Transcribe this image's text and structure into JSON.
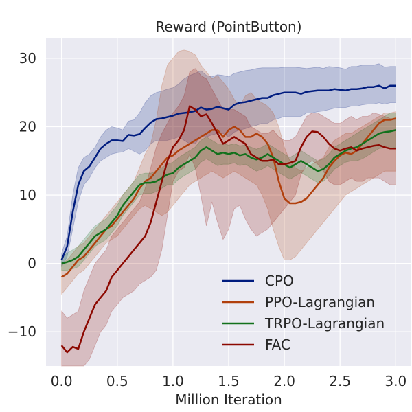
{
  "chart_data": {
    "type": "line",
    "title": "Reward (PointButton)",
    "xlabel": "Million Iteration",
    "ylabel": "",
    "xlim": [
      -0.14,
      3.14
    ],
    "ylim": [
      -15,
      33
    ],
    "xticks": [
      0.0,
      0.5,
      1.0,
      1.5,
      2.0,
      2.5,
      3.0
    ],
    "xtick_labels": [
      "0.0",
      "0.5",
      "1.0",
      "1.5",
      "2.0",
      "2.5",
      "3.0"
    ],
    "yticks": [
      -10,
      0,
      10,
      20,
      30
    ],
    "ytick_labels": [
      "−10",
      "0",
      "10",
      "20",
      "30"
    ],
    "grid": true,
    "background": "#eaeaf2",
    "legend_position": "lower-right",
    "series": [
      {
        "name": "CPO",
        "color": "#001c7f",
        "x": [
          0.0,
          0.05,
          0.1,
          0.15,
          0.2,
          0.25,
          0.3,
          0.35,
          0.4,
          0.45,
          0.5,
          0.55,
          0.6,
          0.65,
          0.7,
          0.75,
          0.8,
          0.85,
          0.9,
          0.95,
          1.0,
          1.05,
          1.1,
          1.15,
          1.2,
          1.25,
          1.3,
          1.35,
          1.4,
          1.45,
          1.5,
          1.55,
          1.6,
          1.65,
          1.7,
          1.75,
          1.8,
          1.85,
          1.9,
          1.95,
          2.0,
          2.05,
          2.1,
          2.15,
          2.2,
          2.25,
          2.3,
          2.35,
          2.4,
          2.45,
          2.5,
          2.55,
          2.6,
          2.65,
          2.7,
          2.75,
          2.8,
          2.85,
          2.9,
          2.95,
          3.0
        ],
        "values": [
          0.5,
          2.5,
          7.5,
          11.5,
          13.5,
          14.2,
          15.5,
          16.8,
          17.5,
          18.0,
          18.0,
          17.9,
          18.8,
          18.7,
          18.9,
          19.8,
          20.6,
          21.1,
          21.2,
          21.4,
          21.6,
          21.9,
          22.0,
          22.1,
          22.3,
          22.8,
          22.5,
          22.6,
          22.9,
          22.7,
          22.5,
          23.2,
          23.5,
          23.6,
          23.8,
          24.0,
          24.2,
          24.2,
          24.6,
          24.8,
          25.0,
          25.0,
          25.0,
          24.8,
          25.1,
          25.2,
          25.3,
          25.3,
          25.3,
          25.5,
          25.4,
          25.3,
          25.5,
          25.5,
          25.6,
          25.8,
          25.8,
          26.0,
          25.6,
          26.0,
          26.0
        ],
        "upper": [
          1.5,
          4.0,
          10.0,
          14.0,
          15.5,
          16.0,
          17.0,
          18.5,
          19.5,
          20.0,
          19.8,
          19.5,
          20.8,
          21.0,
          22.0,
          23.5,
          24.5,
          25.0,
          25.2,
          25.5,
          25.7,
          26.2,
          27.0,
          27.5,
          27.8,
          28.2,
          27.5,
          27.3,
          27.6,
          27.5,
          27.3,
          27.8,
          28.0,
          28.2,
          28.3,
          28.5,
          28.6,
          28.6,
          28.6,
          28.6,
          28.7,
          28.7,
          28.7,
          28.6,
          28.5,
          28.6,
          28.7,
          28.5,
          28.8,
          28.7,
          28.6,
          28.4,
          28.8,
          28.8,
          29.0,
          29.0,
          29.0,
          29.2,
          28.7,
          28.8,
          28.8
        ],
        "lower": [
          -0.5,
          1.0,
          5.0,
          9.0,
          11.5,
          12.5,
          14.0,
          15.0,
          15.5,
          16.0,
          16.2,
          16.3,
          16.8,
          16.4,
          16.0,
          16.5,
          17.5,
          18.0,
          18.0,
          18.0,
          18.2,
          18.5,
          18.0,
          17.5,
          17.5,
          18.5,
          18.5,
          18.8,
          19.0,
          19.0,
          18.5,
          19.2,
          19.5,
          19.7,
          20.0,
          20.2,
          20.5,
          20.5,
          21.0,
          21.2,
          21.5,
          21.5,
          21.5,
          21.5,
          22.0,
          22.0,
          22.2,
          22.3,
          22.5,
          22.7,
          22.8,
          22.8,
          23.0,
          23.0,
          23.2,
          23.3,
          23.3,
          23.5,
          23.3,
          23.5,
          23.5
        ]
      },
      {
        "name": "PPO-Lagrangian",
        "color": "#b1400d",
        "x": [
          0.0,
          0.05,
          0.1,
          0.15,
          0.2,
          0.25,
          0.3,
          0.35,
          0.4,
          0.45,
          0.5,
          0.55,
          0.6,
          0.65,
          0.7,
          0.75,
          0.8,
          0.85,
          0.9,
          0.95,
          1.0,
          1.05,
          1.1,
          1.15,
          1.2,
          1.25,
          1.3,
          1.35,
          1.4,
          1.45,
          1.5,
          1.55,
          1.6,
          1.65,
          1.7,
          1.75,
          1.8,
          1.85,
          1.9,
          1.95,
          2.0,
          2.05,
          2.1,
          2.15,
          2.2,
          2.25,
          2.3,
          2.35,
          2.4,
          2.45,
          2.5,
          2.55,
          2.6,
          2.65,
          2.7,
          2.75,
          2.8,
          2.85,
          2.9,
          2.95,
          3.0
        ],
        "values": [
          -2.0,
          -1.5,
          -0.5,
          0.5,
          1.0,
          2.0,
          3.0,
          4.0,
          5.0,
          5.5,
          6.5,
          7.5,
          8.5,
          9.5,
          11.0,
          12.0,
          12.5,
          13.5,
          14.5,
          15.5,
          15.8,
          16.5,
          17.0,
          17.5,
          18.0,
          18.5,
          19.0,
          19.5,
          19.5,
          18.5,
          19.5,
          20.0,
          19.5,
          18.5,
          18.5,
          19.0,
          18.5,
          17.5,
          15.5,
          12.0,
          9.5,
          8.8,
          8.8,
          9.0,
          9.5,
          10.5,
          11.5,
          12.5,
          14.0,
          15.0,
          15.8,
          16.2,
          16.0,
          16.5,
          17.5,
          18.5,
          19.5,
          20.5,
          21.0,
          21.0,
          21.2
        ],
        "upper": [
          0.0,
          0.5,
          1.5,
          2.5,
          3.0,
          4.0,
          5.0,
          6.0,
          7.0,
          8.0,
          9.0,
          10.0,
          11.0,
          12.0,
          14.0,
          16.0,
          17.5,
          21.0,
          26.0,
          29.0,
          30.0,
          31.0,
          31.2,
          31.0,
          30.5,
          29.0,
          28.0,
          27.0,
          27.5,
          26.5,
          25.5,
          24.0,
          23.0,
          24.5,
          25.0,
          24.0,
          23.5,
          23.0,
          22.0,
          20.0,
          17.0,
          15.0,
          14.0,
          13.5,
          14.0,
          14.5,
          15.0,
          15.5,
          17.0,
          18.0,
          18.5,
          19.0,
          19.0,
          19.5,
          20.0,
          20.5,
          21.0,
          21.5,
          22.0,
          22.0,
          22.2
        ],
        "lower": [
          -4.5,
          -3.5,
          -2.5,
          -1.5,
          -1.0,
          0.0,
          1.0,
          2.0,
          3.0,
          3.5,
          4.0,
          5.0,
          6.0,
          7.0,
          8.0,
          8.5,
          8.0,
          7.5,
          7.0,
          7.5,
          8.5,
          9.5,
          10.5,
          11.5,
          12.0,
          12.5,
          13.0,
          13.5,
          13.0,
          12.5,
          13.0,
          13.5,
          13.0,
          12.5,
          12.0,
          11.5,
          10.0,
          8.0,
          5.0,
          2.5,
          0.5,
          0.5,
          1.0,
          2.0,
          3.0,
          4.0,
          5.0,
          6.0,
          7.0,
          8.0,
          9.0,
          10.0,
          10.5,
          11.0,
          11.5,
          12.0,
          12.5,
          13.0,
          13.5,
          13.5,
          13.5
        ]
      },
      {
        "name": "TRPO-Lagrangian",
        "color": "#12711c",
        "x": [
          0.0,
          0.05,
          0.1,
          0.15,
          0.2,
          0.25,
          0.3,
          0.35,
          0.4,
          0.45,
          0.5,
          0.55,
          0.6,
          0.65,
          0.7,
          0.75,
          0.8,
          0.85,
          0.9,
          0.95,
          1.0,
          1.05,
          1.1,
          1.15,
          1.2,
          1.25,
          1.3,
          1.35,
          1.4,
          1.45,
          1.5,
          1.55,
          1.6,
          1.65,
          1.7,
          1.75,
          1.8,
          1.85,
          1.9,
          1.95,
          2.0,
          2.05,
          2.1,
          2.15,
          2.2,
          2.25,
          2.3,
          2.35,
          2.4,
          2.45,
          2.5,
          2.55,
          2.6,
          2.65,
          2.7,
          2.75,
          2.8,
          2.85,
          2.9,
          2.95,
          3.0
        ],
        "values": [
          0.0,
          0.2,
          0.5,
          1.0,
          2.0,
          3.0,
          4.0,
          4.5,
          5.0,
          6.0,
          7.0,
          8.5,
          9.5,
          10.5,
          11.5,
          11.8,
          11.8,
          12.0,
          12.5,
          13.0,
          13.2,
          14.0,
          14.5,
          15.0,
          15.5,
          16.5,
          17.0,
          16.5,
          16.0,
          16.2,
          16.0,
          16.2,
          15.8,
          16.0,
          15.5,
          15.2,
          15.5,
          16.0,
          15.5,
          15.0,
          14.5,
          14.0,
          14.5,
          15.0,
          14.5,
          14.0,
          13.5,
          13.8,
          14.5,
          15.5,
          16.0,
          16.5,
          16.8,
          17.0,
          17.5,
          18.0,
          18.5,
          19.0,
          19.2,
          19.3,
          19.5
        ],
        "upper": [
          1.0,
          1.5,
          2.0,
          2.5,
          3.5,
          4.5,
          5.5,
          6.0,
          6.5,
          7.5,
          8.5,
          10.0,
          11.0,
          12.0,
          13.0,
          13.2,
          13.2,
          13.5,
          14.0,
          14.5,
          14.8,
          15.5,
          16.0,
          16.5,
          17.0,
          18.0,
          18.5,
          18.0,
          17.5,
          17.5,
          17.3,
          17.5,
          17.2,
          17.3,
          17.0,
          16.7,
          17.0,
          17.5,
          17.0,
          16.5,
          16.0,
          15.5,
          16.0,
          16.5,
          16.0,
          15.5,
          15.0,
          15.3,
          16.0,
          17.0,
          17.5,
          18.0,
          18.5,
          19.0,
          19.5,
          20.0,
          20.5,
          21.0,
          21.5,
          22.0,
          22.0
        ],
        "lower": [
          -1.0,
          -1.0,
          -0.8,
          -0.5,
          0.5,
          1.5,
          2.5,
          3.0,
          3.5,
          4.5,
          5.5,
          7.0,
          8.0,
          9.0,
          10.0,
          10.2,
          10.2,
          10.5,
          11.0,
          11.5,
          11.5,
          12.3,
          12.8,
          13.3,
          13.8,
          14.8,
          15.3,
          14.8,
          14.3,
          14.5,
          14.5,
          14.7,
          14.3,
          14.5,
          14.0,
          13.5,
          13.8,
          14.3,
          13.8,
          13.3,
          12.8,
          12.3,
          12.8,
          13.3,
          12.8,
          12.3,
          11.8,
          12.0,
          12.8,
          13.8,
          14.3,
          14.8,
          15.0,
          15.0,
          15.3,
          15.8,
          16.3,
          16.8,
          16.9,
          16.8,
          17.0
        ]
      },
      {
        "name": "FAC",
        "color": "#8c0800",
        "x": [
          0.0,
          0.05,
          0.1,
          0.15,
          0.2,
          0.25,
          0.3,
          0.35,
          0.4,
          0.45,
          0.5,
          0.55,
          0.6,
          0.65,
          0.7,
          0.75,
          0.8,
          0.85,
          0.9,
          0.95,
          1.0,
          1.05,
          1.1,
          1.15,
          1.2,
          1.25,
          1.3,
          1.35,
          1.4,
          1.45,
          1.5,
          1.55,
          1.6,
          1.65,
          1.7,
          1.75,
          1.8,
          1.85,
          1.9,
          1.95,
          2.0,
          2.05,
          2.1,
          2.15,
          2.2,
          2.25,
          2.3,
          2.35,
          2.4,
          2.45,
          2.5,
          2.55,
          2.6,
          2.65,
          2.7,
          2.75,
          2.8,
          2.85,
          2.9,
          2.95,
          3.0
        ],
        "values": [
          -12.0,
          -13.0,
          -12.2,
          -12.5,
          -10.0,
          -8.0,
          -6.0,
          -5.0,
          -4.0,
          -2.0,
          -1.0,
          0.0,
          1.0,
          2.0,
          3.0,
          4.0,
          6.0,
          9.0,
          12.0,
          15.0,
          17.0,
          18.0,
          19.5,
          23.0,
          22.5,
          21.5,
          21.8,
          20.5,
          19.0,
          17.5,
          18.0,
          18.5,
          18.0,
          17.5,
          16.0,
          15.5,
          15.0,
          15.0,
          15.2,
          14.5,
          14.5,
          14.7,
          15.0,
          17.0,
          18.5,
          19.3,
          19.2,
          18.5,
          17.5,
          16.8,
          16.5,
          16.8,
          17.0,
          16.5,
          16.8,
          17.0,
          17.2,
          17.3,
          17.0,
          16.8,
          16.8
        ],
        "upper": [
          -7.0,
          -8.0,
          -7.5,
          -7.0,
          -4.0,
          -2.0,
          0.0,
          1.0,
          2.0,
          4.0,
          5.0,
          6.0,
          7.0,
          8.0,
          9.0,
          11.0,
          14.0,
          17.0,
          19.0,
          20.5,
          22.0,
          23.0,
          24.5,
          28.0,
          28.5,
          27.5,
          27.0,
          25.5,
          24.0,
          22.5,
          22.5,
          22.5,
          22.0,
          21.5,
          20.0,
          19.5,
          19.0,
          19.0,
          19.5,
          18.5,
          18.0,
          18.0,
          18.5,
          20.0,
          21.5,
          22.0,
          22.0,
          21.5,
          21.0,
          20.5,
          20.5,
          21.0,
          21.5,
          21.0,
          21.5,
          21.5,
          22.0,
          21.8,
          21.5,
          21.2,
          21.0
        ],
        "lower": [
          -16.0,
          -17.0,
          -16.5,
          -16.0,
          -15.5,
          -14.0,
          -12.0,
          -10.0,
          -9.0,
          -7.0,
          -6.0,
          -5.0,
          -4.5,
          -4.0,
          -3.0,
          -2.5,
          -2.0,
          -1.0,
          2.0,
          7.0,
          12.0,
          13.5,
          14.0,
          16.0,
          14.0,
          10.0,
          5.5,
          9.0,
          6.0,
          3.5,
          5.0,
          8.0,
          8.5,
          6.5,
          5.0,
          4.0,
          4.5,
          5.0,
          6.0,
          7.0,
          8.0,
          9.0,
          10.0,
          13.0,
          14.5,
          15.0,
          14.5,
          13.5,
          12.0,
          11.5,
          11.5,
          12.0,
          12.5,
          12.0,
          12.0,
          12.5,
          12.5,
          12.5,
          12.0,
          11.5,
          11.5
        ]
      }
    ]
  }
}
